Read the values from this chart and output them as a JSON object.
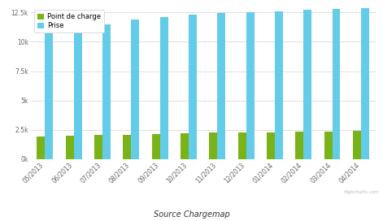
{
  "categories": [
    "05/2013",
    "06/2013",
    "07/2013",
    "08/2013",
    "09/2013",
    "10/2013",
    "11/2013",
    "12/2013",
    "01/2014",
    "02/2014",
    "03/2014",
    "04/2014"
  ],
  "prise": [
    10700,
    11200,
    11500,
    11900,
    12100,
    12300,
    12450,
    12500,
    12600,
    12700,
    12800,
    12850
  ],
  "point_de_charge": [
    1900,
    2000,
    2050,
    2100,
    2150,
    2200,
    2250,
    2270,
    2290,
    2340,
    2370,
    2400
  ],
  "prise_color": "#63cce8",
  "point_color": "#7ab317",
  "bg_color": "#ffffff",
  "grid_color": "#d8d8d8",
  "legend_labels": [
    "Point de charge",
    "Prise"
  ],
  "source_label": "Source Chargemap",
  "ylim": [
    0,
    13000
  ],
  "yticks": [
    0,
    2500,
    5000,
    7500,
    10000,
    12500
  ],
  "ytick_labels": [
    "0k",
    "2.5k",
    "5k",
    "7.5k",
    "10k",
    "12.5k"
  ],
  "bar_width": 0.28,
  "tick_fontsize": 5.5,
  "legend_fontsize": 6.0,
  "source_fontsize": 7.0,
  "watermark": "Highcharts.com",
  "watermark_fontsize": 4.0
}
